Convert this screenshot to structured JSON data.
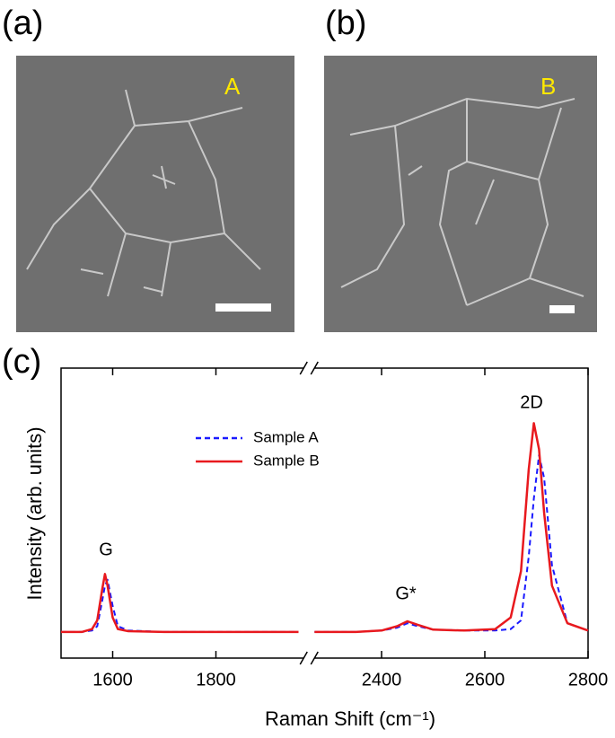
{
  "panel_a": {
    "label": "(a)",
    "sample": "A"
  },
  "panel_b": {
    "label": "(b)",
    "sample": "B"
  },
  "chart_data": {
    "type": "line",
    "label": "(c)",
    "xlabel": "Raman Shift (cm⁻¹)",
    "ylabel": "Intensity (arb. units)",
    "annotations": [
      "G",
      "G*",
      "2D"
    ],
    "x": [
      1500,
      1540,
      1560,
      1570,
      1580,
      1585,
      1590,
      1600,
      1610,
      1630,
      1700,
      1800,
      1900,
      1960,
      2100,
      2270,
      2350,
      2400,
      2430,
      2450,
      2470,
      2500,
      2560,
      2620,
      2650,
      2670,
      2685,
      2695,
      2705,
      2715,
      2730,
      2760,
      2800
    ],
    "series": [
      {
        "name": "Sample A",
        "color": "#1a1aff",
        "linestyle": "dashed",
        "values": [
          9,
          9,
          9.5,
          11,
          20,
          25,
          27,
          18,
          11,
          9.5,
          9,
          9,
          9,
          9,
          null,
          9,
          9,
          9.5,
          10.5,
          12,
          11,
          9.8,
          9.5,
          9.5,
          10,
          13,
          35,
          55,
          70,
          62,
          32,
          12,
          9.5
        ]
      },
      {
        "name": "Sample B",
        "color": "#e8191e",
        "linestyle": "solid",
        "values": [
          9,
          9,
          10,
          13,
          24,
          29,
          25,
          14,
          10,
          9.3,
          9,
          9,
          9,
          9,
          null,
          9,
          9,
          9.5,
          11,
          12.7,
          11.5,
          9.8,
          9.5,
          10,
          14,
          30,
          65,
          81,
          72,
          50,
          25,
          12,
          9.5
        ]
      }
    ],
    "xlim": [
      1500,
      2800
    ],
    "xbreak": [
      1970,
      2270
    ],
    "xticks": [
      1600,
      1800,
      2400,
      2600,
      2800
    ],
    "ylim": [
      0,
      100
    ],
    "legend": "upper center"
  }
}
